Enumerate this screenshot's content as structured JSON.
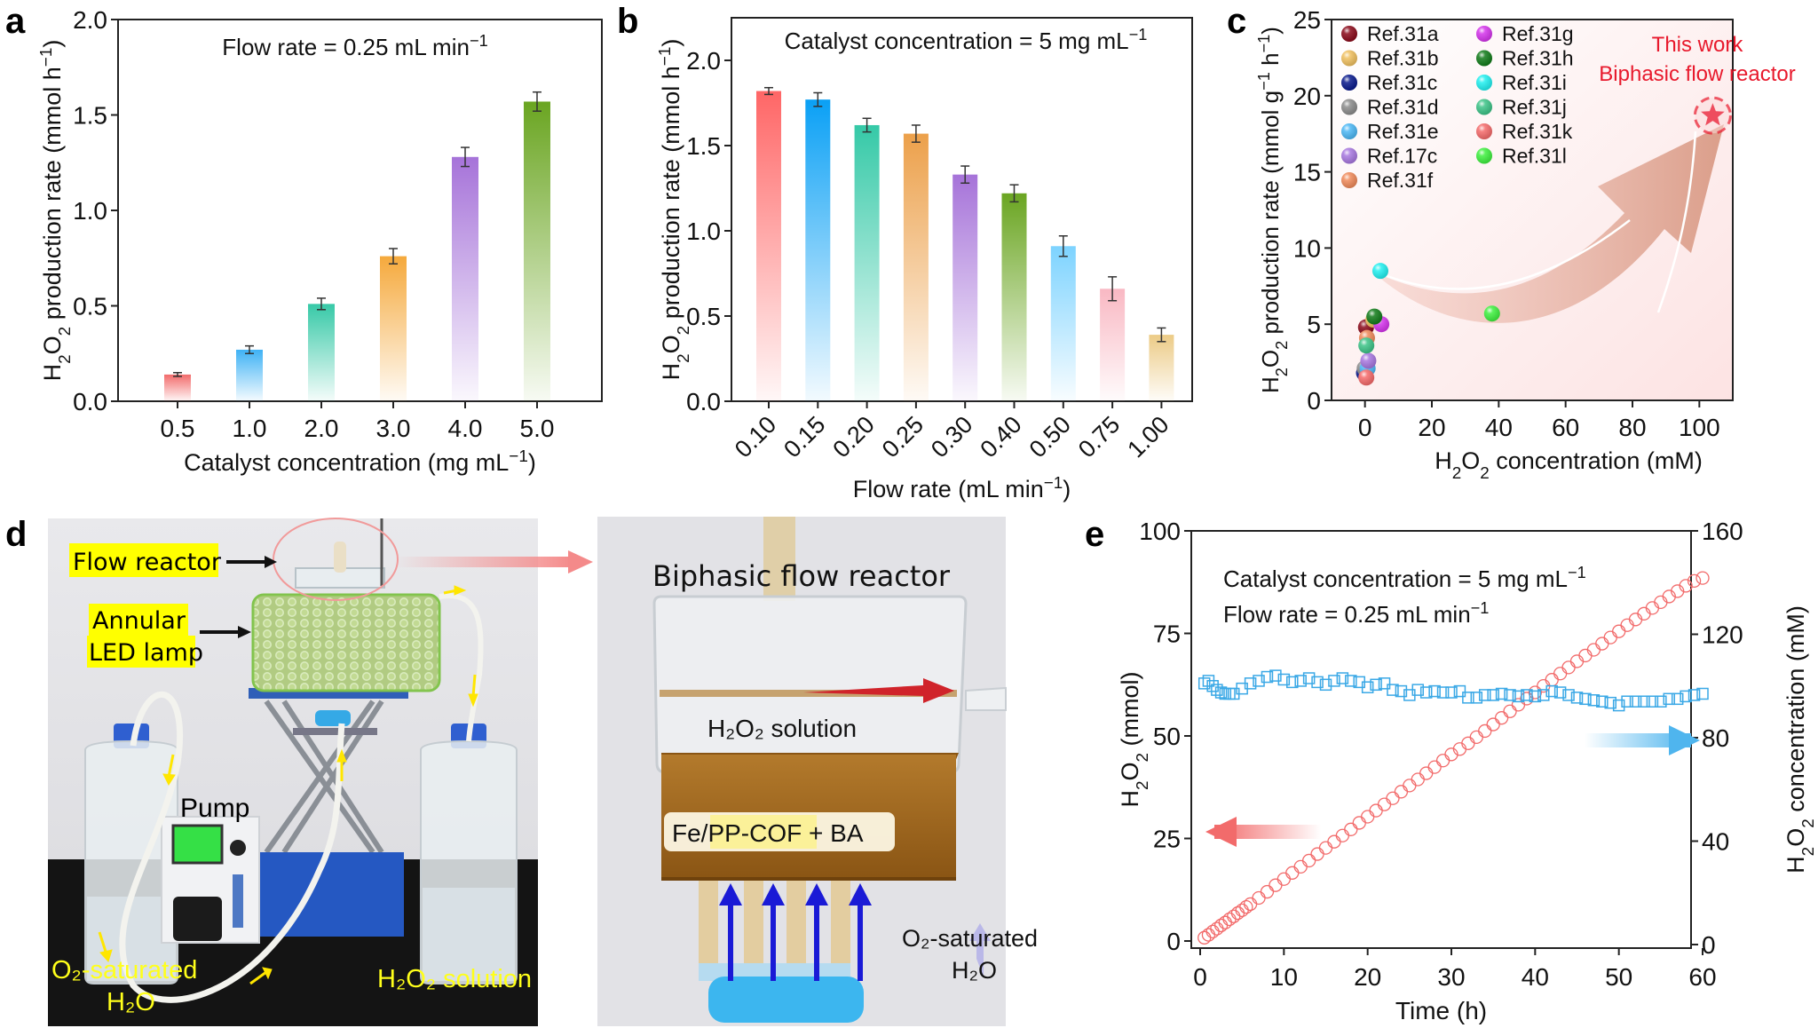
{
  "panels": {
    "a": {
      "label": "a"
    },
    "b": {
      "label": "b"
    },
    "c": {
      "label": "c"
    },
    "d": {
      "label": "d"
    },
    "e": {
      "label": "e"
    }
  },
  "chart_data": [
    {
      "id": "a",
      "type": "bar",
      "title": "",
      "annotation": "Flow rate = 0.25 mL min⁻¹",
      "xlabel": "Catalyst concentration (mg mL⁻¹)",
      "ylabel": "H₂O₂ production rate (mmol h⁻¹)",
      "categories": [
        "0.5",
        "1.0",
        "2.0",
        "3.0",
        "4.0",
        "5.0"
      ],
      "values": [
        0.14,
        0.27,
        0.51,
        0.76,
        1.28,
        1.57
      ],
      "errors": [
        0.01,
        0.02,
        0.03,
        0.04,
        0.05,
        0.05
      ],
      "colors": [
        "#f26b6b",
        "#3fb2f5",
        "#37c9a7",
        "#f5a93c",
        "#a673d9",
        "#6aa521"
      ],
      "ylim": [
        0,
        2.0
      ],
      "yticks": [
        0.0,
        0.5,
        1.0,
        1.5,
        2.0
      ],
      "ytick_labels": [
        "0.0",
        "0.5",
        "1.0",
        "1.5",
        "2.0"
      ],
      "grid": false
    },
    {
      "id": "b",
      "type": "bar",
      "title": "",
      "annotation": "Catalyst concentration = 5 mg mL⁻¹",
      "xlabel": "Flow rate (mL min⁻¹)",
      "ylabel": "H₂O₂ production rate (mmol h⁻¹)",
      "categories": [
        "0.10",
        "0.15",
        "0.20",
        "0.25",
        "0.30",
        "0.40",
        "0.50",
        "0.75",
        "1.00"
      ],
      "values": [
        1.82,
        1.77,
        1.62,
        1.57,
        1.33,
        1.22,
        0.91,
        0.66,
        0.39
      ],
      "errors": [
        0.02,
        0.04,
        0.04,
        0.05,
        0.05,
        0.05,
        0.06,
        0.07,
        0.04
      ],
      "colors": [
        "#ff6666",
        "#0aa0f5",
        "#35c9a7",
        "#eca04a",
        "#a673d9",
        "#6aa521",
        "#7dd3ff",
        "#f9b8c3",
        "#eccb86"
      ],
      "ylim": [
        0,
        2.25
      ],
      "yticks": [
        0.0,
        0.5,
        1.0,
        1.5,
        2.0
      ],
      "ytick_labels": [
        "0.0",
        "0.5",
        "1.0",
        "1.5",
        "2.0"
      ],
      "grid": false
    },
    {
      "id": "c",
      "type": "scatter",
      "title": "",
      "xlabel": "H₂O₂ concentration (mM)",
      "ylabel": "H₂O₂ production rate (mmol g⁻¹ h⁻¹)",
      "xlim": [
        -10,
        110
      ],
      "ylim": [
        0,
        25
      ],
      "xticks": [
        0,
        20,
        40,
        60,
        80,
        100
      ],
      "xtick_labels": [
        "0",
        "20",
        "40",
        "60",
        "80",
        "100"
      ],
      "yticks": [
        0,
        5,
        10,
        15,
        20,
        25
      ],
      "ytick_labels": [
        "0",
        "5",
        "10",
        "15",
        "20",
        "25"
      ],
      "legend_position": "top-left",
      "series": [
        {
          "name": "Ref.31a",
          "color": "#8b0a1a",
          "x": 0.3,
          "y": 4.8
        },
        {
          "name": "Ref.31b",
          "color": "#f0c060",
          "x": 2.5,
          "y": 5.3
        },
        {
          "name": "Ref.31c",
          "color": "#0a1a8c",
          "x": -0.3,
          "y": 1.8
        },
        {
          "name": "Ref.31d",
          "color": "#8c8c8c",
          "x": -0.1,
          "y": 2.1
        },
        {
          "name": "Ref.31e",
          "color": "#4db8f5",
          "x": 0.8,
          "y": 2.1
        },
        {
          "name": "Ref.17c",
          "color": "#a878e0",
          "x": 1.0,
          "y": 2.6
        },
        {
          "name": "Ref.31f",
          "color": "#f08a5a",
          "x": 0.6,
          "y": 4.1
        },
        {
          "name": "Ref.31g",
          "color": "#d535ec",
          "x": 4.9,
          "y": 5.0
        },
        {
          "name": "Ref.31h",
          "color": "#127c1a",
          "x": 2.8,
          "y": 5.5
        },
        {
          "name": "Ref.31i",
          "color": "#22f0f0",
          "x": 4.6,
          "y": 8.5
        },
        {
          "name": "Ref.31j",
          "color": "#3dc488",
          "x": 0.4,
          "y": 3.6
        },
        {
          "name": "Ref.31k",
          "color": "#f56b6b",
          "x": 0.4,
          "y": 1.5
        },
        {
          "name": "Ref.31l",
          "color": "#3ff03f",
          "x": 38,
          "y": 5.7
        }
      ],
      "highlight": {
        "name": "This work",
        "subtitle": "Biphasic flow reactor",
        "x": 104,
        "y": 18.7,
        "color": "#e8192c",
        "marker": "star"
      }
    },
    {
      "id": "e",
      "type": "scatter",
      "title": "",
      "annotations": [
        "Catalyst concentration  = 5 mg mL⁻¹",
        "Flow rate = 0.25 mL min⁻¹"
      ],
      "xlabel": "Time (h)",
      "ylabel_left": "H₂O₂ (mmol)",
      "ylabel_right": "H₂O₂ concentration (mM)",
      "xlim": [
        -1.2,
        61
      ],
      "xticks": [
        0,
        10,
        20,
        30,
        40,
        50,
        60
      ],
      "xtick_labels": [
        "0",
        "10",
        "20",
        "30",
        "40",
        "50",
        "60"
      ],
      "ylim_left": [
        0,
        100
      ],
      "yticks_left": [
        0,
        25,
        50,
        75,
        100
      ],
      "ytick_labels_left": [
        "0",
        "25",
        "50",
        "75",
        "100"
      ],
      "ylim_right": [
        0,
        160
      ],
      "yticks_right": [
        0,
        40,
        80,
        120,
        160
      ],
      "ytick_labels_right": [
        "0",
        "40",
        "80",
        "120",
        "160"
      ],
      "series": [
        {
          "name": "H₂O₂ amount",
          "axis": "left",
          "marker": "open-circle",
          "color": "#f26b6b",
          "x_start": 0.5,
          "x_step": 0.5,
          "count": 10,
          "x": [
            0.5,
            1,
            1.5,
            2,
            2.5,
            3,
            3.5,
            4,
            4.5,
            5,
            5.5,
            6,
            7,
            8,
            9,
            10,
            11,
            12,
            13,
            14,
            15,
            16,
            17,
            18,
            19,
            20,
            21,
            22,
            23,
            24,
            25,
            26,
            27,
            28,
            29,
            30,
            31,
            32,
            33,
            34,
            35,
            36,
            37,
            38,
            39,
            40,
            41,
            42,
            43,
            44,
            45,
            46,
            47,
            48,
            49,
            50,
            51,
            52,
            53,
            54,
            55,
            56,
            57,
            58,
            59,
            60
          ],
          "y": [
            0.8,
            1.5,
            2.3,
            3.0,
            3.8,
            4.5,
            5.3,
            6.0,
            6.8,
            7.5,
            8.3,
            9.0,
            10.5,
            12.0,
            13.6,
            15.1,
            16.6,
            18.1,
            19.6,
            21.2,
            22.7,
            24.2,
            25.7,
            27.2,
            28.8,
            30.3,
            31.8,
            33.3,
            34.8,
            36.4,
            37.9,
            39.4,
            40.9,
            42.4,
            44.0,
            45.5,
            46.8,
            48.2,
            49.7,
            51.2,
            52.8,
            54.4,
            56.0,
            57.6,
            59.1,
            60.6,
            62.2,
            63.7,
            65.2,
            66.7,
            68.2,
            69.6,
            71.0,
            72.5,
            74.0,
            75.5,
            77.0,
            78.4,
            79.8,
            81.2,
            82.6,
            84.0,
            85.3,
            86.6,
            87.8,
            88.5
          ]
        },
        {
          "name": "H₂O₂ concentration",
          "axis": "right",
          "marker": "open-square",
          "color": "#3aa8e6",
          "x": [
            0.5,
            1,
            1.5,
            2,
            2.5,
            3,
            3.5,
            4,
            5,
            6,
            7,
            8,
            9,
            10,
            11,
            12,
            13,
            14,
            15,
            16,
            17,
            18,
            19,
            20,
            21,
            22,
            23,
            24,
            25,
            26,
            27,
            28,
            29,
            30,
            31,
            32,
            33,
            34,
            35,
            36,
            37,
            38,
            39,
            40,
            41,
            42,
            43,
            44,
            45,
            46,
            47,
            48,
            49,
            50,
            51,
            52,
            53,
            54,
            55,
            56,
            57,
            58,
            59,
            60
          ],
          "y": [
            101,
            102,
            100,
            98.5,
            97.5,
            97,
            97,
            97,
            99,
            101,
            102,
            103.5,
            104,
            102.5,
            101.5,
            102,
            103,
            101.5,
            100.5,
            102,
            103,
            102,
            101.5,
            99.5,
            100.5,
            101,
            98.5,
            98,
            96.5,
            98.5,
            97.5,
            98,
            97.5,
            97.5,
            98,
            95.5,
            95.5,
            96.5,
            96.5,
            97,
            96.5,
            96,
            96.5,
            96,
            96.5,
            98,
            97.5,
            96.5,
            95.5,
            95,
            94.5,
            94,
            93.5,
            92.5,
            94,
            94,
            94,
            94,
            94,
            95,
            95,
            96,
            96.5,
            97
          ]
        }
      ],
      "arrows": [
        {
          "direction": "left",
          "refers_to": "left axis",
          "color": "#f26b6b"
        },
        {
          "direction": "right",
          "refers_to": "right axis",
          "color": "#4fb5ee"
        }
      ]
    }
  ],
  "photo_d": {
    "labels": {
      "flow_reactor": "Flow reactor",
      "annular": "Annular",
      "led_lamp": "LED lamp",
      "pump": "Pump",
      "o2_saturated": "O₂-saturated",
      "h2o": "H₂O",
      "h2o2_solution": "H₂O₂ solution"
    },
    "zoom": {
      "title": "Biphasic flow reactor",
      "h2o2_solution": "H₂O₂ solution",
      "catalyst": "Fe/PP-COF + BA",
      "o2_saturated": "O₂-saturated",
      "h2o": "H₂O"
    }
  }
}
